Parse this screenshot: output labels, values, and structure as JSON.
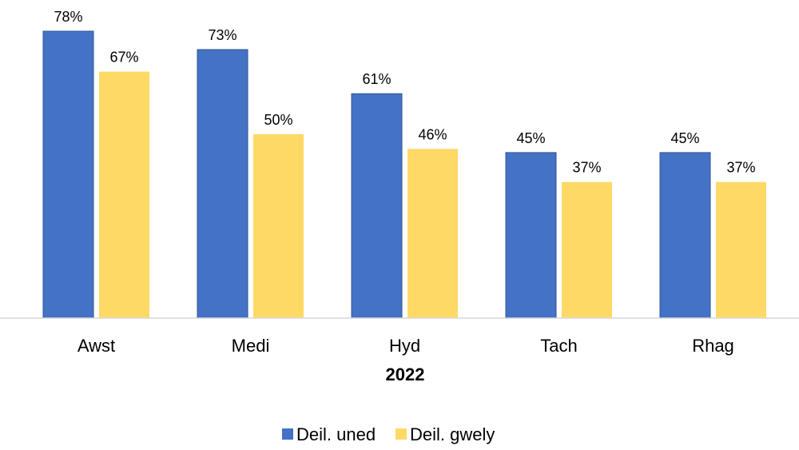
{
  "chart_data": {
    "type": "bar",
    "title": "",
    "xlabel": "2022",
    "ylabel": "",
    "categories": [
      "Awst",
      "Medi",
      "Hyd",
      "Tach",
      "Rhag"
    ],
    "series": [
      {
        "name": "Deil. uned",
        "color": "#4472C4",
        "values": [
          78,
          73,
          61,
          45,
          45
        ],
        "labels": [
          "78%",
          "73%",
          "61%",
          "45%",
          "45%"
        ]
      },
      {
        "name": "Deil. gwely",
        "color": "#FFD966",
        "values": [
          67,
          50,
          46,
          37,
          37
        ],
        "labels": [
          "67%",
          "50%",
          "46%",
          "37%",
          "37%"
        ]
      }
    ],
    "ylim": [
      0,
      80
    ],
    "value_format": "percent",
    "grid": false,
    "y_axis_visible": false,
    "legend_position": "bottom"
  }
}
